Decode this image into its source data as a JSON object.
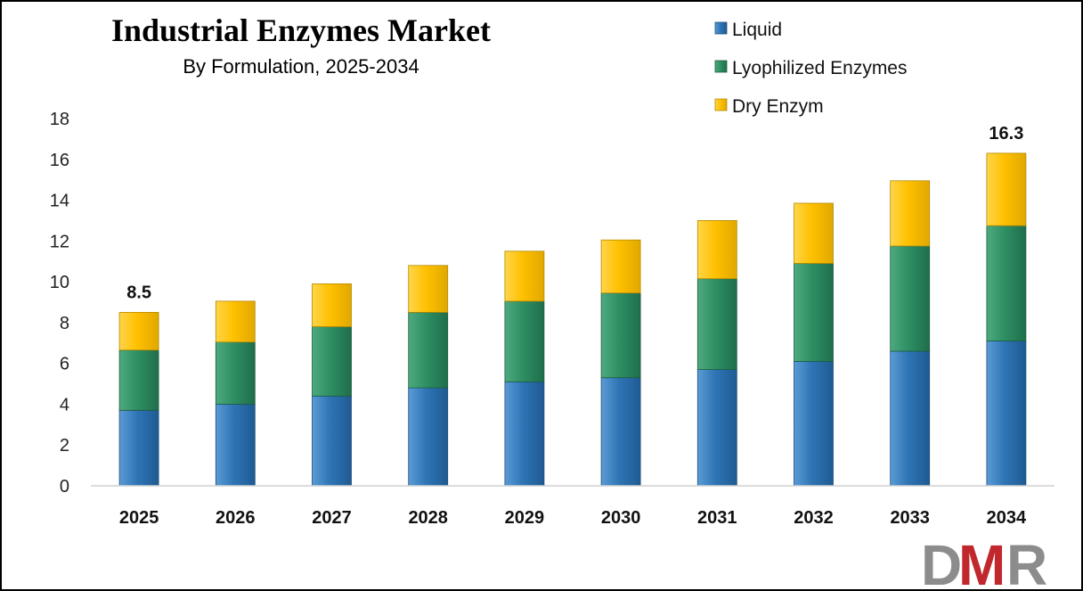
{
  "chart_data": {
    "type": "bar",
    "stacked": true,
    "title": "Industrial Enzymes Market",
    "subtitle": "By Formulation, 2025-2034",
    "categories": [
      "2025",
      "2026",
      "2027",
      "2028",
      "2029",
      "2030",
      "2031",
      "2032",
      "2033",
      "2034"
    ],
    "series": [
      {
        "name": "Liquid",
        "color": "#2E75B6",
        "values": [
          3.7,
          4.0,
          4.4,
          4.8,
          5.1,
          5.3,
          5.7,
          6.1,
          6.6,
          7.1
        ]
      },
      {
        "name": "Lyophilized Enzymes",
        "color": "#2F8F64",
        "values": [
          2.95,
          3.05,
          3.4,
          3.7,
          3.95,
          4.15,
          4.45,
          4.8,
          5.15,
          5.65
        ]
      },
      {
        "name": "Dry Enzym",
        "color": "#FFC000",
        "values": [
          1.85,
          2.0,
          2.1,
          2.3,
          2.45,
          2.6,
          2.85,
          2.95,
          3.2,
          3.55
        ]
      }
    ],
    "totals": [
      8.5,
      9.05,
      9.9,
      10.8,
      11.5,
      12.05,
      13.0,
      13.85,
      14.95,
      16.3
    ],
    "data_labels": [
      {
        "category": "2025",
        "text": "8.5"
      },
      {
        "category": "2034",
        "text": "16.3"
      }
    ],
    "ylim": [
      0,
      18
    ],
    "yticks": [
      0,
      2,
      4,
      6,
      8,
      10,
      12,
      14,
      16,
      18
    ],
    "xlabel": "",
    "ylabel": "",
    "grid": false,
    "legend_position": "top-right"
  },
  "logo": {
    "text": "DMR",
    "colors": [
      "#8C8C8C",
      "#C0282D",
      "#8C8C8C"
    ]
  }
}
